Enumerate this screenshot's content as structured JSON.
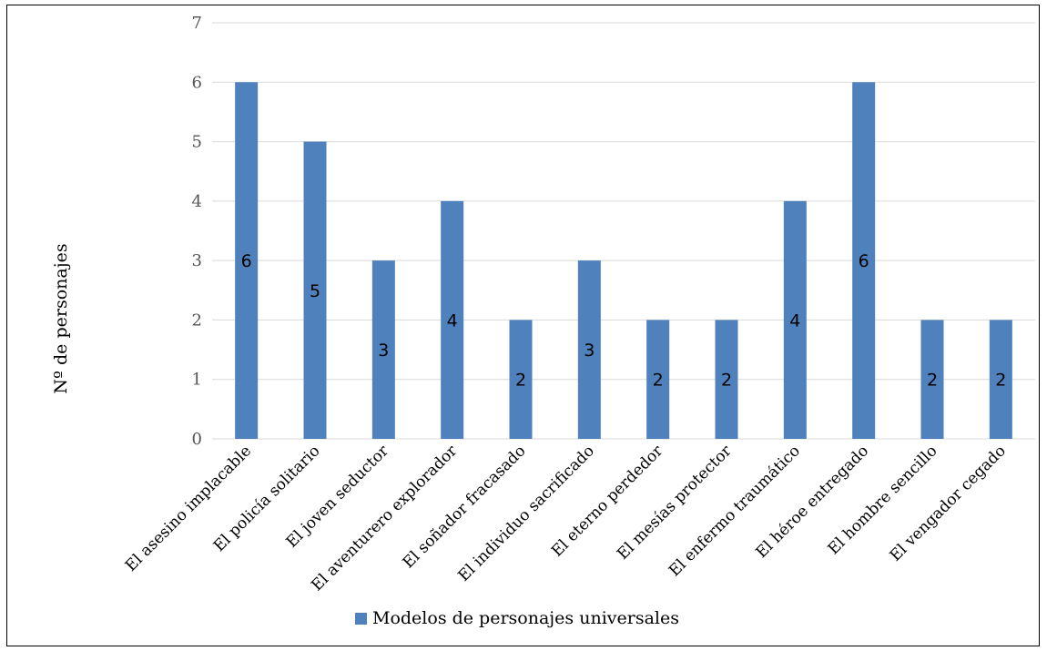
{
  "chart_data": {
    "type": "bar",
    "categories": [
      "El asesino implacable",
      "El policía solitario",
      "El joven seductor",
      "El aventurero explorador",
      "El soñador fracasado",
      "El individuo sacrificado",
      "El eterno perdedor",
      "El mesías protector",
      "El enfermo traumático",
      "El héroe entregado",
      "El hombre sencillo",
      "El vengador cegado"
    ],
    "series": [
      {
        "name": "Modelos de personajes universales",
        "values": [
          6,
          5,
          3,
          4,
          2,
          3,
          2,
          2,
          4,
          6,
          2,
          2
        ],
        "color": "#4f81bd"
      }
    ],
    "title": "",
    "xlabel": "",
    "ylabel": "Nº de personajes",
    "ylim": [
      0,
      7
    ],
    "yticks": [
      0,
      1,
      2,
      3,
      4,
      5,
      6,
      7
    ],
    "grid": true,
    "legend": "bottom",
    "data_labels": true
  }
}
